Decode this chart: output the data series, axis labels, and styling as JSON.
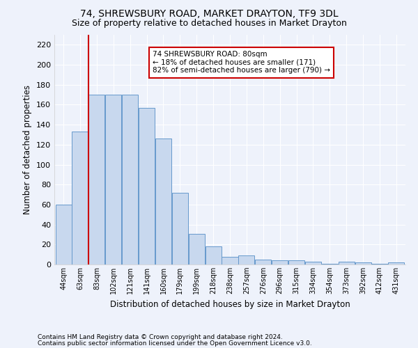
{
  "title": "74, SHREWSBURY ROAD, MARKET DRAYTON, TF9 3DL",
  "subtitle": "Size of property relative to detached houses in Market Drayton",
  "xlabel": "Distribution of detached houses by size in Market Drayton",
  "ylabel": "Number of detached properties",
  "footer_line1": "Contains HM Land Registry data © Crown copyright and database right 2024.",
  "footer_line2": "Contains public sector information licensed under the Open Government Licence v3.0.",
  "categories": [
    "44sqm",
    "63sqm",
    "83sqm",
    "102sqm",
    "121sqm",
    "141sqm",
    "160sqm",
    "179sqm",
    "199sqm",
    "218sqm",
    "238sqm",
    "257sqm",
    "276sqm",
    "296sqm",
    "315sqm",
    "334sqm",
    "354sqm",
    "373sqm",
    "392sqm",
    "412sqm",
    "431sqm"
  ],
  "bar_heights": [
    60,
    133,
    170,
    170,
    170,
    157,
    126,
    72,
    31,
    18,
    8,
    9,
    5,
    4,
    4,
    3,
    1,
    3,
    2,
    1,
    2
  ],
  "bar_color": "#c8d8ee",
  "bar_edge_color": "#6699cc",
  "vline_color": "#cc0000",
  "annotation_text": "74 SHREWSBURY ROAD: 80sqm\n← 18% of detached houses are smaller (171)\n82% of semi-detached houses are larger (790) →",
  "annotation_box_color": "white",
  "annotation_box_edge_color": "#cc0000",
  "ylim": [
    0,
    230
  ],
  "yticks": [
    0,
    20,
    40,
    60,
    80,
    100,
    120,
    140,
    160,
    180,
    200,
    220
  ],
  "title_fontsize": 10,
  "subtitle_fontsize": 9,
  "axis_label_fontsize": 8.5,
  "tick_fontsize": 8,
  "xtick_fontsize": 7,
  "footer_fontsize": 6.5,
  "background_color": "#eef2fb",
  "plot_bg_color": "#eef2fb",
  "grid_color": "#ffffff",
  "vline_x_index": 1.5
}
